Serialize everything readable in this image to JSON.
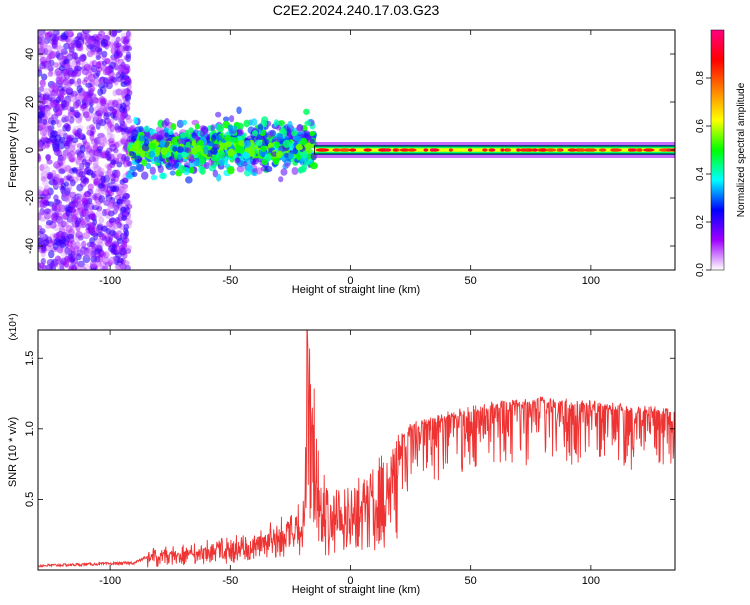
{
  "title": "C2E2.2024.240.17.03.G23",
  "chart_data": [
    {
      "type": "heatmap",
      "xlabel": "Height of straight line (km)",
      "ylabel": "Frequency (Hz)",
      "xlim": [
        -130,
        135
      ],
      "ylim": [
        -50,
        50
      ],
      "x_ticks": [
        -100,
        -50,
        0,
        50,
        100
      ],
      "y_ticks": [
        -40,
        -20,
        0,
        20,
        40
      ],
      "colorbar": {
        "label": "Normalized spectral amplitude",
        "range": [
          0.0,
          1.0
        ],
        "ticks": [
          0.0,
          0.2,
          0.4,
          0.6,
          0.8
        ],
        "tick_labels": [
          "0.0",
          "0.2",
          "0.4",
          "0.6",
          "0.8"
        ],
        "colors": [
          "#ffffff",
          "#a000ff",
          "#0000ff",
          "#00ffff",
          "#00ff00",
          "#ffff00",
          "#ff8000",
          "#ff0000",
          "#ff0080"
        ]
      },
      "regions": [
        {
          "x_range": [
            -130,
            -92
          ],
          "freq_spread": 50,
          "amplitude": 0.15,
          "note": "broadband noise"
        },
        {
          "x_range": [
            -92,
            -15
          ],
          "freq_spread": 8,
          "amplitude": 0.35,
          "note": "scattered band near 0 Hz"
        },
        {
          "x_range": [
            -15,
            135
          ],
          "freq_spread": 1.5,
          "amplitude": 0.9,
          "note": "narrow strong line at 0 Hz"
        }
      ]
    },
    {
      "type": "line",
      "xlabel": "Height of straight line (km)",
      "ylabel": "SNR (10 * v/v)",
      "y_multiplier": "(x10⁴)",
      "xlim": [
        -130,
        135
      ],
      "ylim": [
        0,
        1.7
      ],
      "x_ticks": [
        -100,
        -50,
        0,
        50,
        100
      ],
      "y_ticks": [
        0.5,
        1.0,
        1.5
      ],
      "color": "#ee3333",
      "profile": [
        {
          "x": -130,
          "y": 0.02
        },
        {
          "x": -90,
          "y": 0.04
        },
        {
          "x": -85,
          "y": 0.08
        },
        {
          "x": -60,
          "y": 0.15
        },
        {
          "x": -40,
          "y": 0.22
        },
        {
          "x": -25,
          "y": 0.33
        },
        {
          "x": -19,
          "y": 0.45
        },
        {
          "x": -18,
          "y": 1.7
        },
        {
          "x": -10,
          "y": 0.55
        },
        {
          "x": 5,
          "y": 0.62
        },
        {
          "x": 15,
          "y": 0.8
        },
        {
          "x": 25,
          "y": 1.0
        },
        {
          "x": 40,
          "y": 1.08
        },
        {
          "x": 60,
          "y": 1.15
        },
        {
          "x": 80,
          "y": 1.18
        },
        {
          "x": 100,
          "y": 1.15
        },
        {
          "x": 120,
          "y": 1.12
        },
        {
          "x": 135,
          "y": 1.1
        }
      ]
    }
  ]
}
